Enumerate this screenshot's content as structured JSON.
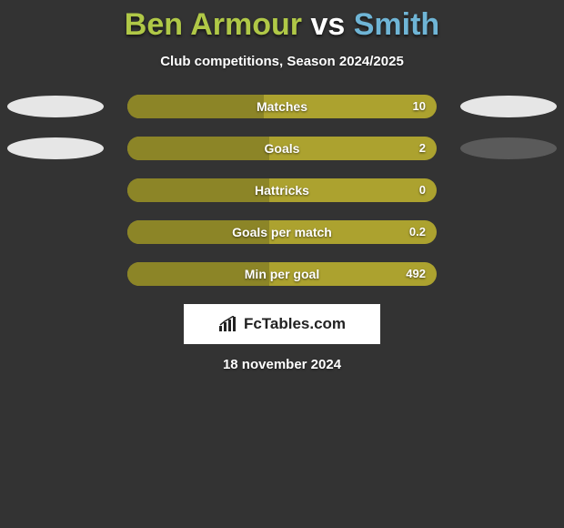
{
  "title": {
    "player1": "Ben Armour",
    "vs": "vs",
    "player2": "Smith",
    "player1_color": "#b0c847",
    "vs_color": "#ffffff",
    "player2_color": "#6fb5d6"
  },
  "subtitle": "Club competitions, Season 2024/2025",
  "background_color": "#333333",
  "bar_track_color": "#aca22f",
  "bar_fill_color": "#8c8527",
  "text_color": "#ffffff",
  "rows": [
    {
      "label": "Matches",
      "value_right": "10",
      "fill_left_pct": 44,
      "orb_left": true,
      "orb_right": true,
      "orb_left_color": "#e6e6e6",
      "orb_right_color": "#e6e6e6"
    },
    {
      "label": "Goals",
      "value_right": "2",
      "fill_left_pct": 46,
      "orb_left": true,
      "orb_right": true,
      "orb_left_color": "#e6e6e6",
      "orb_right_color": "#5a5a5a"
    },
    {
      "label": "Hattricks",
      "value_right": "0",
      "fill_left_pct": 46,
      "orb_left": false,
      "orb_right": false
    },
    {
      "label": "Goals per match",
      "value_right": "0.2",
      "fill_left_pct": 46,
      "orb_left": false,
      "orb_right": false
    },
    {
      "label": "Min per goal",
      "value_right": "492",
      "fill_left_pct": 46,
      "orb_left": false,
      "orb_right": false
    }
  ],
  "footer": {
    "logo_text": "FcTables.com",
    "date": "18 november 2024"
  }
}
